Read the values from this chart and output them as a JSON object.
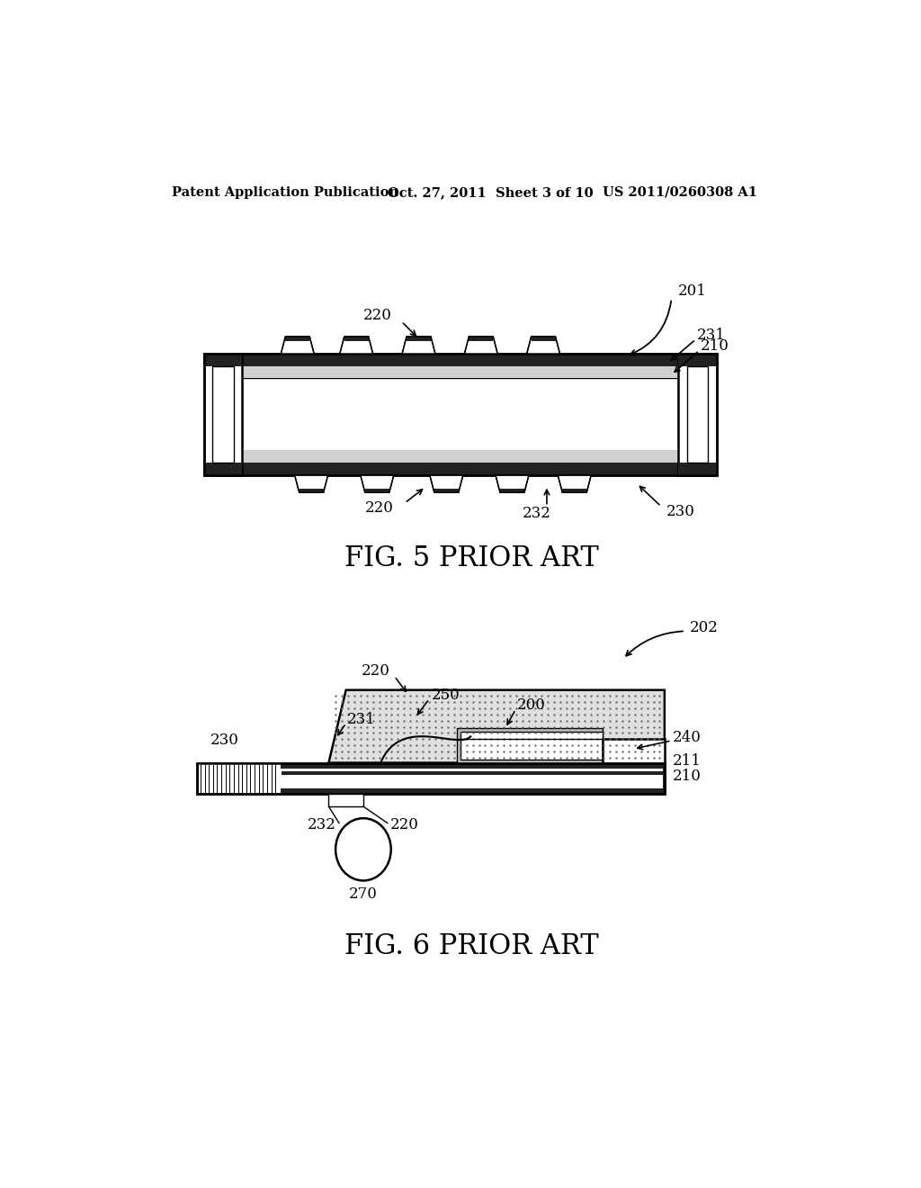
{
  "background_color": "#ffffff",
  "header_left": "Patent Application Publication",
  "header_center": "Oct. 27, 2011  Sheet 3 of 10",
  "header_right": "US 2011/0260308 A1",
  "fig5_caption": "FIG. 5 PRIOR ART",
  "fig6_caption": "FIG. 6 PRIOR ART"
}
